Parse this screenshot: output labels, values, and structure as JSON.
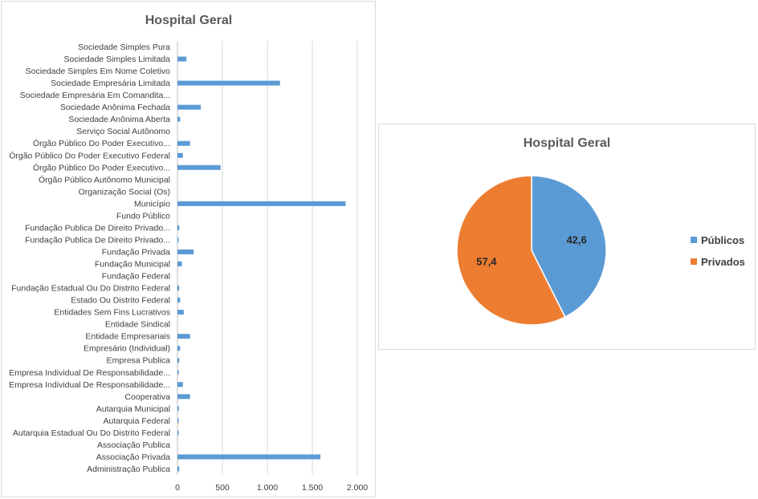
{
  "chart_data": [
    {
      "type": "bar",
      "orientation": "horizontal",
      "title": "Hospital Geral",
      "categories": [
        "Sociedade Simples Pura",
        "Sociedade Simples Limitada",
        "Sociedade Simples Em Nome Coletivo",
        "Sociedade Empresária Limitada",
        "Sociedade Empresária Em Comandita...",
        "Sociedade Anônima Fechada",
        "Sociedade Anônima Aberta",
        "Serviço Social Autônomo",
        "Órgão Público Do Poder Executivo...",
        "Órgão Público Do Poder Executivo Federal",
        "Órgão Público Do Poder Executivo...",
        "Órgão Público Autônomo Municipal",
        "Organização Social (Os)",
        "Município",
        "Fundo Público",
        "Fundação Publica De Direito Privado...",
        "Fundação Publica De Direito Privado...",
        "Fundação Privada",
        "Fundação Municipal",
        "Fundação Federal",
        "Fundação Estadual Ou Do Distrito Federal",
        "Estado Ou Distrito Federal",
        "Entidades Sem Fins Lucrativos",
        "Entidade Sindical",
        "Entidade Empresariais",
        "Empresário (Individual)",
        "Empresa Publica",
        "Empresa Individual De Responsabilidade...",
        "Empresa Individual De Responsabilidade...",
        "Cooperativa",
        "Autarquia Municipal",
        "Autarquia Federal",
        "Autarquia Estadual Ou Do Distrito Federal",
        "Associação Publica",
        "Associação Privada",
        "Administração Publica"
      ],
      "values": [
        0,
        100,
        0,
        1140,
        0,
        260,
        30,
        0,
        140,
        60,
        480,
        0,
        0,
        1870,
        0,
        20,
        5,
        180,
        50,
        0,
        20,
        30,
        70,
        0,
        140,
        30,
        20,
        5,
        60,
        140,
        15,
        10,
        10,
        0,
        1590,
        20
      ],
      "xlim": [
        0,
        2000
      ],
      "xticks": [
        "0",
        "500",
        "1.000",
        "1.500",
        "2.000"
      ],
      "xtick_values": [
        0,
        500,
        1000,
        1500,
        2000
      ],
      "grid": true,
      "color": "#5b9bd5"
    },
    {
      "type": "pie",
      "title": "Hospital Geral",
      "labels": [
        "Públicos",
        "Privados"
      ],
      "values": [
        42.6,
        57.4
      ],
      "data_labels": [
        "42,6",
        "57,4"
      ],
      "colors": [
        "#5b9bd5",
        "#ed7d31"
      ],
      "legend": "right"
    }
  ]
}
